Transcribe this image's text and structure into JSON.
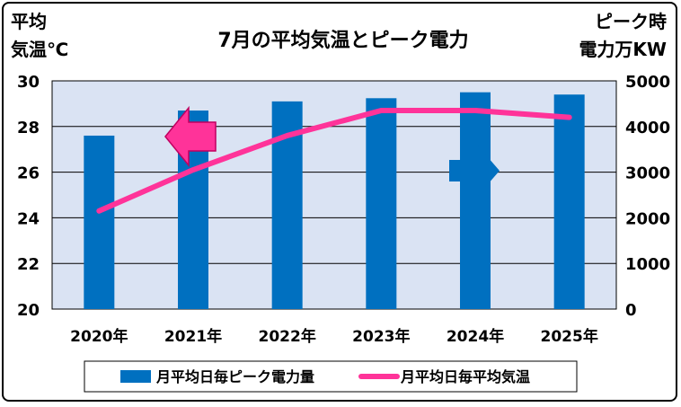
{
  "chart_data": {
    "type": "bar",
    "title": "7月の平均気温とピーク電力",
    "y_left_label": [
      "平均",
      "気温℃"
    ],
    "y_right_label": [
      "ピーク時",
      "電力万KW"
    ],
    "categories": [
      "2020年",
      "2021年",
      "2022年",
      "2023年",
      "2024年",
      "2025年"
    ],
    "y_left_ticks": [
      "30",
      "28",
      "26",
      "24",
      "22",
      "20"
    ],
    "y_right_ticks": [
      "5000",
      "4000",
      "3000",
      "2000",
      "1000",
      "0"
    ],
    "ylim_left": [
      20,
      30
    ],
    "ylim_right": [
      0,
      5000
    ],
    "grid": true,
    "legend_position": "bottom",
    "series": [
      {
        "name": "月平均日毎ピーク電力量",
        "type": "bar",
        "axis": "right",
        "color": "#0070C0",
        "values": [
          3800,
          4350,
          4550,
          4620,
          4750,
          4700
        ]
      },
      {
        "name": "月平均日毎平均気温",
        "type": "line",
        "axis": "left",
        "color": "#FF3399",
        "values": [
          24.3,
          26.1,
          27.6,
          28.7,
          28.7,
          28.4
        ]
      }
    ],
    "annotations": [
      {
        "type": "arrow",
        "direction": "left",
        "color": "#FF3399",
        "meaning": "temperature axis (left)"
      },
      {
        "type": "arrow",
        "direction": "right",
        "color": "#0070C0",
        "meaning": "power axis (right)"
      }
    ]
  }
}
